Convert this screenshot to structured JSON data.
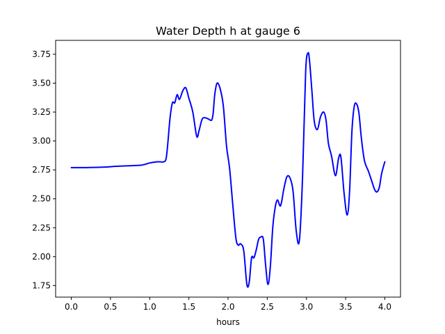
{
  "chart_data": {
    "type": "line",
    "title": "Water Depth h at gauge 6",
    "xlabel": "hours",
    "ylabel": "",
    "xlim": [
      -0.2,
      4.2
    ],
    "ylim": [
      1.65,
      3.87
    ],
    "grid": false,
    "xticks": [
      0.0,
      0.5,
      1.0,
      1.5,
      2.0,
      2.5,
      3.0,
      3.5,
      4.0
    ],
    "xtick_labels": [
      "0.0",
      "0.5",
      "1.0",
      "1.5",
      "2.0",
      "2.5",
      "3.0",
      "3.5",
      "4.0"
    ],
    "yticks": [
      1.75,
      2.0,
      2.25,
      2.5,
      2.75,
      3.0,
      3.25,
      3.5,
      3.75
    ],
    "ytick_labels": [
      "1.75",
      "2.00",
      "2.25",
      "2.50",
      "2.75",
      "3.00",
      "3.25",
      "3.50",
      "3.75"
    ],
    "series": [
      {
        "color": "#0000ff",
        "x": [
          0.0,
          0.2,
          0.45,
          0.55,
          0.7,
          0.88,
          0.95,
          1.0,
          1.1,
          1.18,
          1.21,
          1.23,
          1.26,
          1.29,
          1.32,
          1.35,
          1.38,
          1.42,
          1.46,
          1.5,
          1.55,
          1.6,
          1.63,
          1.67,
          1.71,
          1.75,
          1.79,
          1.81,
          1.83,
          1.86,
          1.9,
          1.94,
          1.98,
          2.02,
          2.06,
          2.1,
          2.13,
          2.16,
          2.2,
          2.24,
          2.27,
          2.3,
          2.33,
          2.36,
          2.39,
          2.42,
          2.45,
          2.48,
          2.51,
          2.54,
          2.57,
          2.6,
          2.63,
          2.67,
          2.71,
          2.75,
          2.79,
          2.83,
          2.87,
          2.91,
          2.95,
          2.99,
          3.02,
          3.04,
          3.07,
          3.1,
          3.14,
          3.18,
          3.22,
          3.25,
          3.28,
          3.32,
          3.37,
          3.41,
          3.44,
          3.48,
          3.52,
          3.55,
          3.58,
          3.61,
          3.64,
          3.67,
          3.7,
          3.74,
          3.79,
          3.83,
          3.87,
          3.9,
          3.93,
          3.96,
          4.0
        ],
        "y": [
          2.77,
          2.77,
          2.775,
          2.78,
          2.785,
          2.79,
          2.8,
          2.81,
          2.82,
          2.82,
          2.85,
          2.97,
          3.2,
          3.33,
          3.33,
          3.4,
          3.36,
          3.43,
          3.46,
          3.37,
          3.25,
          3.04,
          3.09,
          3.19,
          3.2,
          3.19,
          3.18,
          3.24,
          3.4,
          3.5,
          3.45,
          3.3,
          2.96,
          2.76,
          2.45,
          2.16,
          2.1,
          2.11,
          2.05,
          1.76,
          1.78,
          1.99,
          1.99,
          2.06,
          2.15,
          2.17,
          2.15,
          1.92,
          1.76,
          1.92,
          2.25,
          2.42,
          2.49,
          2.44,
          2.58,
          2.69,
          2.68,
          2.56,
          2.22,
          2.14,
          2.68,
          3.6,
          3.76,
          3.69,
          3.43,
          3.17,
          3.1,
          3.21,
          3.25,
          3.18,
          2.98,
          2.87,
          2.7,
          2.85,
          2.86,
          2.55,
          2.36,
          2.56,
          3.08,
          3.3,
          3.32,
          3.24,
          3.03,
          2.83,
          2.74,
          2.66,
          2.58,
          2.56,
          2.6,
          2.72,
          2.82
        ]
      }
    ]
  }
}
